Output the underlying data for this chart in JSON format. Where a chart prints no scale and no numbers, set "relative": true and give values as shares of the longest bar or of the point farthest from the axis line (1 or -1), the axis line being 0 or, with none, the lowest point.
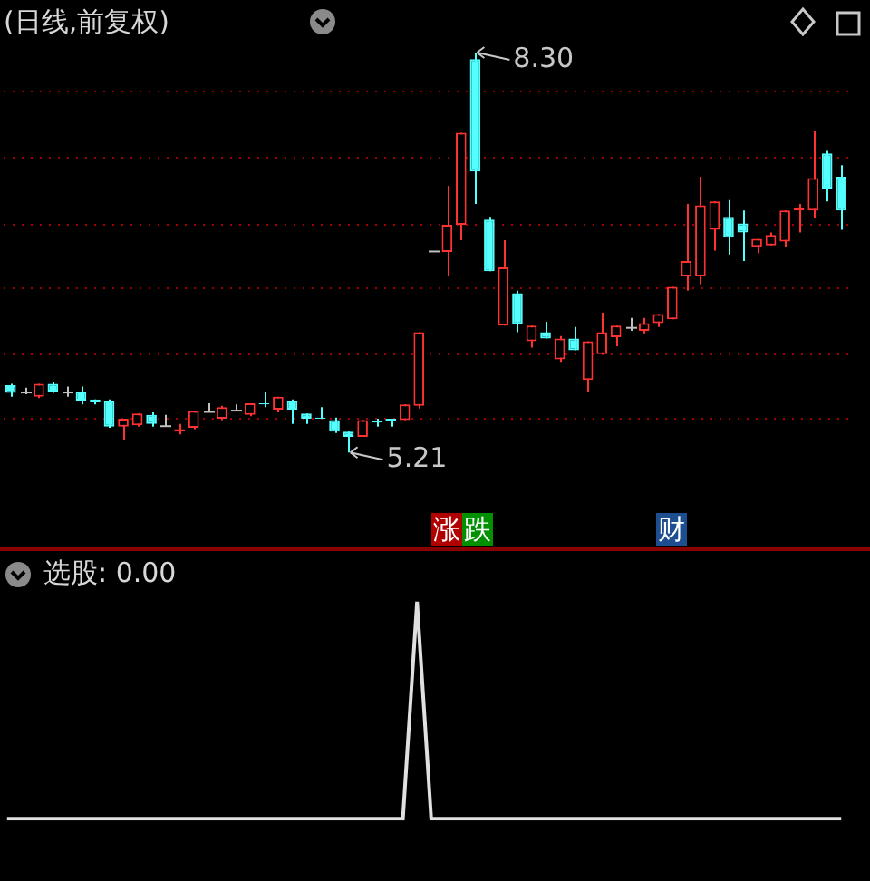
{
  "chart_data": [
    {
      "type": "candlestick",
      "title": "(日线,前复权)",
      "categories": [
        null,
        null,
        null,
        null,
        null,
        null,
        null,
        null,
        null,
        null,
        null,
        null,
        null,
        null,
        null,
        null,
        null,
        null,
        null,
        null,
        null,
        null,
        null,
        null,
        null,
        null,
        null,
        null,
        null,
        null,
        null,
        null,
        null,
        null,
        null,
        null,
        null,
        null,
        null,
        null,
        null,
        null,
        null,
        null,
        null,
        null,
        null,
        null,
        null,
        null,
        null,
        null,
        null,
        null,
        null,
        null,
        null,
        null,
        null,
        null
      ],
      "ohlc": [
        [
          5.73,
          5.74,
          5.64,
          5.67
        ],
        [
          5.68,
          5.71,
          5.66,
          5.68
        ],
        [
          5.64,
          5.74,
          5.63,
          5.74
        ],
        [
          5.74,
          5.75,
          5.67,
          5.68
        ],
        [
          5.68,
          5.72,
          5.64,
          5.68
        ],
        [
          5.68,
          5.72,
          5.58,
          5.61
        ],
        [
          5.62,
          5.62,
          5.58,
          5.6
        ],
        [
          5.61,
          5.62,
          5.4,
          5.41
        ],
        [
          5.41,
          5.47,
          5.31,
          5.47
        ],
        [
          5.42,
          5.51,
          5.41,
          5.51
        ],
        [
          5.5,
          5.52,
          5.41,
          5.43
        ],
        [
          5.42,
          5.5,
          5.41,
          5.42
        ],
        [
          5.37,
          5.43,
          5.35,
          5.39
        ],
        [
          5.4,
          5.53,
          5.39,
          5.53
        ],
        [
          5.53,
          5.59,
          5.52,
          5.53
        ],
        [
          5.47,
          5.57,
          5.46,
          5.56
        ],
        [
          5.54,
          5.58,
          5.53,
          5.54
        ],
        [
          5.5,
          5.59,
          5.49,
          5.59
        ],
        [
          5.59,
          5.68,
          5.56,
          5.58
        ],
        [
          5.54,
          5.64,
          5.52,
          5.64
        ],
        [
          5.61,
          5.62,
          5.43,
          5.54
        ],
        [
          5.51,
          5.51,
          5.43,
          5.47
        ],
        [
          5.48,
          5.56,
          5.47,
          5.47
        ],
        [
          5.46,
          5.48,
          5.36,
          5.37
        ],
        [
          5.37,
          5.37,
          5.21,
          5.33
        ],
        [
          5.33,
          5.46,
          5.33,
          5.46
        ],
        [
          5.45,
          5.47,
          5.41,
          5.44
        ],
        [
          5.47,
          5.47,
          5.41,
          5.45
        ],
        [
          5.46,
          5.58,
          5.46,
          5.58
        ],
        [
          5.57,
          6.14,
          5.55,
          6.14
        ],
        [
          6.77,
          6.77,
          6.77,
          6.77
        ],
        [
          6.76,
          7.27,
          6.57,
          6.97
        ],
        [
          6.97,
          7.68,
          6.85,
          7.68
        ],
        [
          8.25,
          8.3,
          7.13,
          7.38
        ],
        [
          7.01,
          7.03,
          6.61,
          6.61
        ],
        [
          6.19,
          6.85,
          6.19,
          6.64
        ],
        [
          6.44,
          6.46,
          6.14,
          6.2
        ],
        [
          6.07,
          6.19,
          6.02,
          6.19
        ],
        [
          6.14,
          6.22,
          6.09,
          6.09
        ],
        [
          5.93,
          6.11,
          5.91,
          6.09
        ],
        [
          6.09,
          6.18,
          6.0,
          6.0
        ],
        [
          5.77,
          6.07,
          5.68,
          6.07
        ],
        [
          5.97,
          6.29,
          5.97,
          6.14
        ],
        [
          6.1,
          6.19,
          6.03,
          6.19
        ],
        [
          6.18,
          6.25,
          6.15,
          6.18
        ],
        [
          6.15,
          6.25,
          6.13,
          6.21
        ],
        [
          6.21,
          6.28,
          6.18,
          6.28
        ],
        [
          6.24,
          6.49,
          6.24,
          6.49
        ],
        [
          6.57,
          7.13,
          6.46,
          6.69
        ],
        [
          6.57,
          7.34,
          6.51,
          7.12
        ],
        [
          6.93,
          7.15,
          6.77,
          7.15
        ],
        [
          7.03,
          7.16,
          6.74,
          6.87
        ],
        [
          6.98,
          7.08,
          6.69,
          6.91
        ],
        [
          6.8,
          6.86,
          6.75,
          6.86
        ],
        [
          6.81,
          6.91,
          6.81,
          6.89
        ],
        [
          6.84,
          7.08,
          6.8,
          7.08
        ],
        [
          7.08,
          7.13,
          6.91,
          7.1
        ],
        [
          7.08,
          7.69,
          7.02,
          7.33
        ],
        [
          7.52,
          7.54,
          7.15,
          7.25
        ],
        [
          7.34,
          7.43,
          6.93,
          7.08
        ]
      ],
      "colors": [
        "#54ffff",
        "#c0c0c0",
        "#ff3232",
        "#54ffff",
        "#c0c0c0",
        "#54ffff",
        "#54ffff",
        "#54ffff",
        "#ff3232",
        "#ff3232",
        "#54ffff",
        "#c0c0c0",
        "#ff3232",
        "#ff3232",
        "#c0c0c0",
        "#ff3232",
        "#c0c0c0",
        "#ff3232",
        "#54ffff",
        "#ff3232",
        "#54ffff",
        "#54ffff",
        "#54ffff",
        "#54ffff",
        "#54ffff",
        "#ff3232",
        "#54ffff",
        "#54ffff",
        "#ff3232",
        "#ff3232",
        "#c0c0c0",
        "#ff3232",
        "#ff3232",
        "#54ffff",
        "#54ffff",
        "#ff3232",
        "#54ffff",
        "#ff3232",
        "#54ffff",
        "#ff3232",
        "#54ffff",
        "#ff3232",
        "#ff3232",
        "#ff3232",
        "#c0c0c0",
        "#ff3232",
        "#ff3232",
        "#ff3232",
        "#ff3232",
        "#ff3232",
        "#ff3232",
        "#54ffff",
        "#54ffff",
        "#ff3232",
        "#ff3232",
        "#ff3232",
        "#ff3232",
        "#ff3232",
        "#54ffff",
        "#54ffff"
      ],
      "yticks": [
        {
          "value": 5.47,
          "label": null
        },
        {
          "value": 5.97,
          "label": null
        },
        {
          "value": 6.48,
          "label": null
        },
        {
          "value": 6.97,
          "label": null
        },
        {
          "value": 7.49,
          "label": null
        },
        {
          "value": 8.0,
          "label": null
        }
      ],
      "grid": "y",
      "legend": false,
      "annotations": [
        "8.30",
        "5.21",
        "涨跌",
        "财"
      ]
    },
    {
      "type": "line",
      "title": "选股: 0.00",
      "relative": true,
      "legend": false,
      "categories": [
        null,
        null,
        null,
        null,
        null,
        null,
        null,
        null,
        null,
        null,
        null,
        null,
        null,
        null,
        null,
        null,
        null,
        null,
        null,
        null,
        null,
        null,
        null,
        null,
        null,
        null,
        null,
        null,
        null,
        null,
        null,
        null,
        null,
        null,
        null,
        null,
        null,
        null,
        null,
        null,
        null,
        null,
        null,
        null,
        null,
        null,
        null,
        null,
        null,
        null,
        null,
        null,
        null,
        null,
        null,
        null,
        null,
        null,
        null,
        null
      ],
      "series": [
        {
          "color": "#e0e0e0",
          "values": [
            0,
            0,
            0,
            0,
            0,
            0,
            0,
            0,
            0,
            0,
            0,
            0,
            0,
            0,
            0,
            0,
            0,
            0,
            0,
            0,
            0,
            0,
            0,
            0,
            0,
            0,
            0,
            0,
            0,
            1,
            0,
            0,
            0,
            0,
            0,
            0,
            0,
            0,
            0,
            0,
            0,
            0,
            0,
            0,
            0,
            0,
            0,
            0,
            0,
            0,
            0,
            0,
            0,
            0,
            0,
            0,
            0,
            0,
            0,
            0
          ]
        }
      ]
    }
  ]
}
